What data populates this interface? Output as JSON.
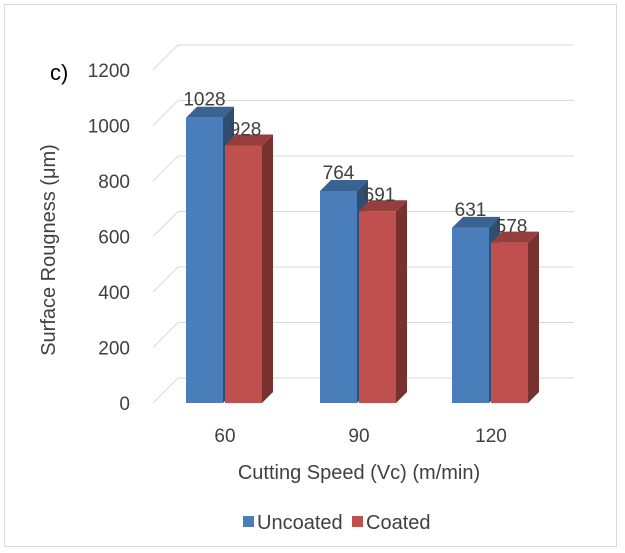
{
  "chart_data": {
    "type": "bar",
    "panel_label": "c)",
    "categories": [
      "60",
      "90",
      "120"
    ],
    "series": [
      {
        "name": "Uncoated",
        "values": [
          1028,
          764,
          631
        ],
        "color": "#4a7ebb"
      },
      {
        "name": "Coated",
        "values": [
          928,
          691,
          578
        ],
        "color": "#c0504d"
      }
    ],
    "data_labels": {
      "Uncoated": [
        "1028",
        "764",
        "631"
      ],
      "Coated": [
        "928",
        "691",
        "578"
      ]
    },
    "xlabel": "Cutting Speed (Vc) (m/min)",
    "ylabel": "Surface Rougness (μm)",
    "ylim": [
      0,
      1200
    ],
    "yticks": [
      "0",
      "200",
      "400",
      "600",
      "800",
      "1000",
      "1200"
    ],
    "grid": true,
    "legend_position": "bottom",
    "style": "3d-clustered-column"
  }
}
